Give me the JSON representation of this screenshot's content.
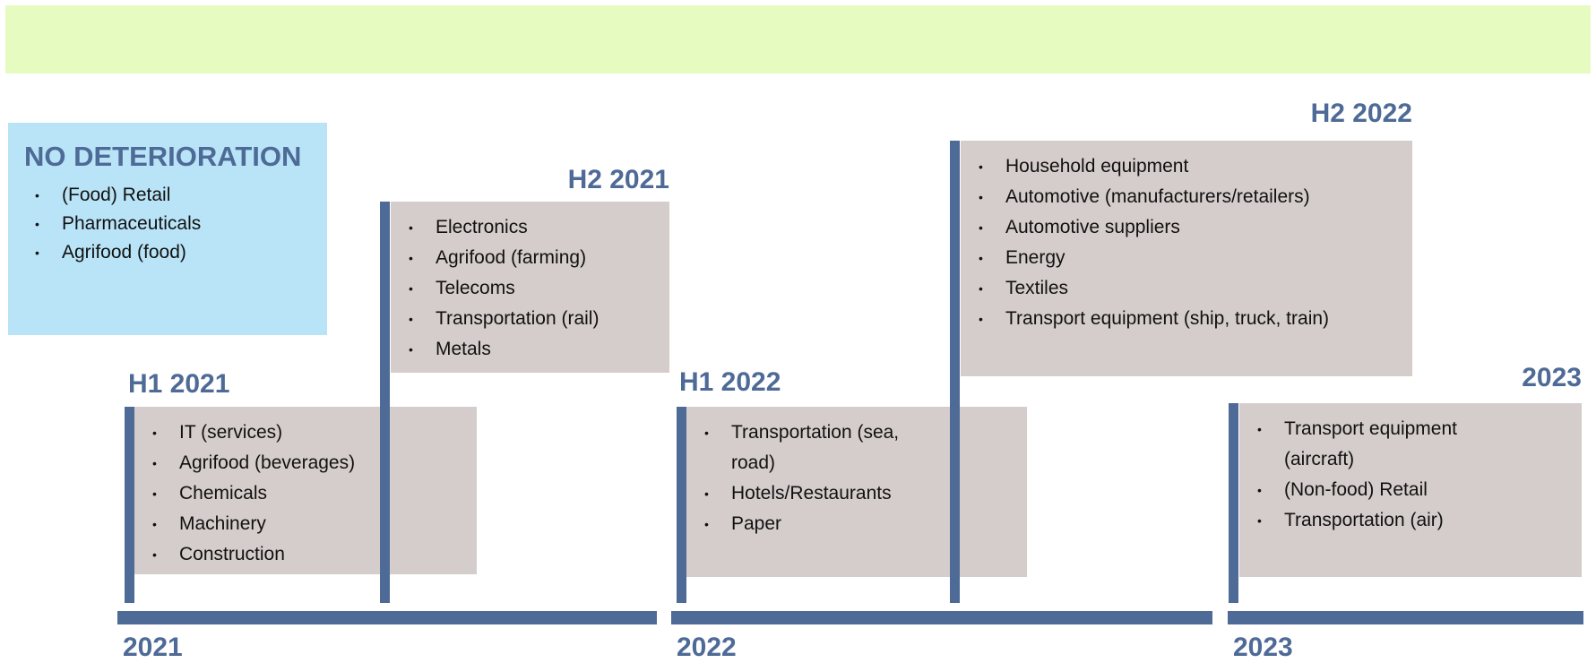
{
  "no_deterioration": {
    "title": "NO DETERIORATION",
    "items": [
      "(Food) Retail",
      "Pharmaceuticals",
      "Agrifood (food)"
    ]
  },
  "periods": [
    {
      "label": "H1 2021",
      "items": [
        "IT (services)",
        "Agrifood (beverages)",
        "Chemicals",
        "Machinery",
        "Construction"
      ]
    },
    {
      "label": "H2 2021",
      "items": [
        "Electronics",
        "Agrifood (farming)",
        "Telecoms",
        "Transportation (rail)",
        "Metals"
      ]
    },
    {
      "label": "H1 2022",
      "items": [
        "Transportation (sea, road)",
        "Hotels/Restaurants",
        "Paper"
      ]
    },
    {
      "label": "H2 2022",
      "items": [
        "Household equipment",
        "Automotive (manufacturers/retailers)",
        "Automotive suppliers",
        "Energy",
        "Textiles",
        "Transport equipment (ship, truck, train)"
      ]
    },
    {
      "label": "2023",
      "items": [
        "Transport equipment (aircraft)",
        "(Non-food) Retail",
        "Transportation (air)"
      ]
    }
  ],
  "years": [
    "2021",
    "2022",
    "2023"
  ]
}
